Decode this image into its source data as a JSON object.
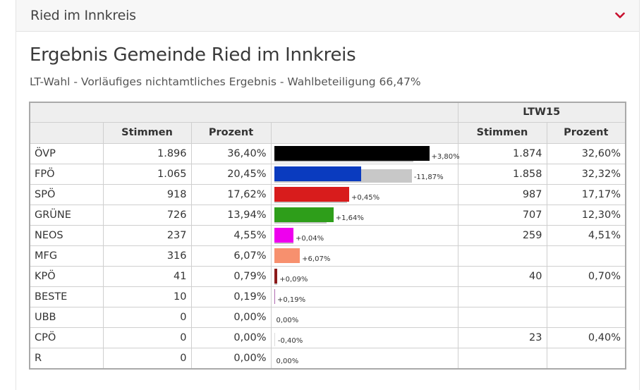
{
  "header": {
    "title": "Ried im Innkreis"
  },
  "page_title": "Ergebnis Gemeinde Ried im Innkreis",
  "subtitle": "LT-Wahl - Vorläufiges nichtamtliches Ergebnis - Wahlbeteiligung 66,47%",
  "table": {
    "group_header": "LTW15",
    "columns": [
      "Stimmen",
      "Prozent",
      "Stimmen",
      "Prozent"
    ],
    "rows": [
      {
        "party": "ÖVP",
        "votes": "1.896",
        "pct": "36,40%",
        "share": 36.4,
        "prev_share": 32.6,
        "delta": "+3,80%",
        "color": "#000000",
        "prev_votes": "1.874",
        "prev_pct": "32,60%"
      },
      {
        "party": "FPÖ",
        "votes": "1.065",
        "pct": "20,45%",
        "share": 20.45,
        "prev_share": 32.32,
        "delta": "-11,87%",
        "color": "#0a3bbf",
        "prev_votes": "1.858",
        "prev_pct": "32,32%"
      },
      {
        "party": "SPÖ",
        "votes": "918",
        "pct": "17,62%",
        "share": 17.62,
        "prev_share": 17.17,
        "delta": "+0,45%",
        "color": "#d81c1c",
        "prev_votes": "987",
        "prev_pct": "17,17%"
      },
      {
        "party": "GRÜNE",
        "votes": "726",
        "pct": "13,94%",
        "share": 13.94,
        "prev_share": 12.3,
        "delta": "+1,64%",
        "color": "#2e9e1a",
        "prev_votes": "707",
        "prev_pct": "12,30%"
      },
      {
        "party": "NEOS",
        "votes": "237",
        "pct": "4,55%",
        "share": 4.55,
        "prev_share": 4.51,
        "delta": "+0,04%",
        "color": "#ee00ee",
        "prev_votes": "259",
        "prev_pct": "4,51%"
      },
      {
        "party": "MFG",
        "votes": "316",
        "pct": "6,07%",
        "share": 6.07,
        "prev_share": 0,
        "delta": "+6,07%",
        "color": "#f7906e",
        "prev_votes": "",
        "prev_pct": ""
      },
      {
        "party": "KPÖ",
        "votes": "41",
        "pct": "0,79%",
        "share": 0.79,
        "prev_share": 0.7,
        "delta": "+0,09%",
        "color": "#8b1a1a",
        "prev_votes": "40",
        "prev_pct": "0,70%"
      },
      {
        "party": "BESTE",
        "votes": "10",
        "pct": "0,19%",
        "share": 0.19,
        "prev_share": 0,
        "delta": "+0,19%",
        "color": "#b06ab0",
        "prev_votes": "",
        "prev_pct": ""
      },
      {
        "party": "UBB",
        "votes": "0",
        "pct": "0,00%",
        "share": 0,
        "prev_share": 0,
        "delta": "0,00%",
        "color": "#999999",
        "prev_votes": "",
        "prev_pct": ""
      },
      {
        "party": "CPÖ",
        "votes": "0",
        "pct": "0,00%",
        "share": 0,
        "prev_share": 0.4,
        "delta": "-0,40%",
        "color": "#999999",
        "prev_votes": "23",
        "prev_pct": "0,40%"
      },
      {
        "party": "R",
        "votes": "0",
        "pct": "0,00%",
        "share": 0,
        "prev_share": 0,
        "delta": "0,00%",
        "color": "#999999",
        "prev_votes": "",
        "prev_pct": ""
      }
    ]
  }
}
